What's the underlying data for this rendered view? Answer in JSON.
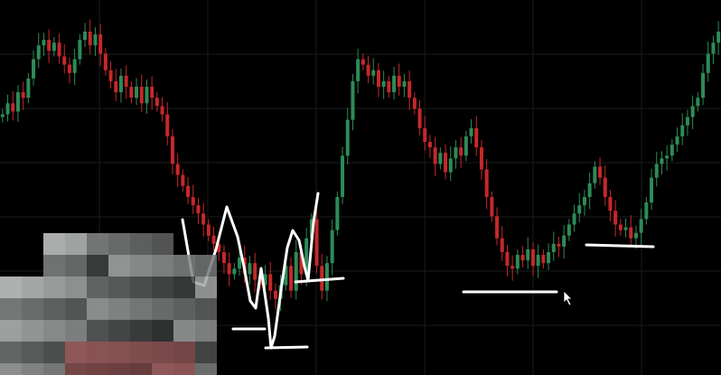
{
  "chart_data": {
    "type": "candlestick",
    "title": "",
    "xlabel": "",
    "ylabel": "",
    "grid": true,
    "ylim": [
      0,
      100
    ],
    "colors": {
      "background": "#000000",
      "grid": "#1b1b1b",
      "up": "#2e8b57",
      "down": "#c62828",
      "annotation": "#ffffff"
    },
    "series": [
      {
        "values": [
          70,
          74,
          71,
          78,
          76,
          83,
          90,
          95,
          97,
          93,
          96,
          91,
          88,
          85,
          90,
          97,
          100,
          95,
          99,
          92,
          86,
          82,
          78,
          84,
          80,
          76,
          80,
          74,
          80,
          76,
          73,
          70,
          62,
          52,
          48,
          44,
          40,
          37,
          34,
          30,
          26,
          23,
          20,
          16,
          12,
          14,
          18,
          12,
          16,
          10,
          8,
          12,
          6,
          3,
          8,
          15,
          6,
          20,
          12,
          25,
          32,
          15,
          6,
          16,
          28,
          40,
          55,
          68,
          82,
          90,
          88,
          84,
          86,
          80,
          82,
          78,
          84,
          80,
          82,
          76,
          72,
          65,
          60,
          58,
          52,
          56,
          49,
          54,
          58,
          55,
          62,
          65,
          58,
          50,
          40,
          33,
          25,
          20,
          15,
          14,
          19,
          17,
          21,
          15,
          19,
          16,
          20,
          23,
          22,
          26,
          30,
          34,
          37,
          40,
          45,
          51,
          47,
          40,
          35,
          30,
          28,
          29,
          25,
          27,
          32,
          38,
          47,
          52,
          54,
          55,
          59,
          62,
          66,
          69,
          73,
          76,
          85,
          92,
          96,
          100
        ]
      }
    ],
    "annotations": [
      {
        "type": "w-pattern",
        "label": ""
      },
      {
        "type": "support-line",
        "label": ""
      },
      {
        "type": "support-line",
        "label": ""
      }
    ]
  },
  "redacted_region": {
    "type": "pixelated-block"
  }
}
